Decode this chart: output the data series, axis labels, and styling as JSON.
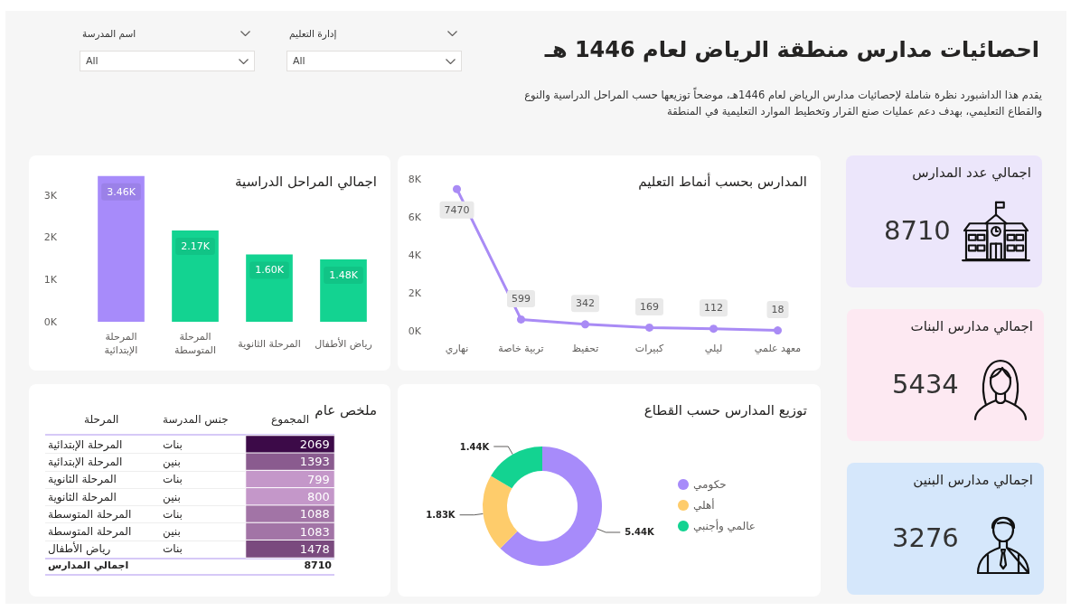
{
  "chart_data": [
    {
      "type": "other",
      "title": "احصائيات مدارس منطقة الرياض لعام 1446 هـ",
      "subtitle": "يقدم هذا الداشبورد نظرة شاملة لإحصائيات مدارس الرياض لعام 1446هـ، موضحاً توزيعها حسب المراحل الدراسية والنوع والقطاع التعليمي، بهدف دعم عمليات صنع القرار وتخطيط الموارد التعليمية في المنطقة",
      "annotations": [
        "إدارة التعليم",
        "All",
        "اسم المدرسة",
        "All"
      ]
    },
    {
      "type": "other",
      "title": "اجمالي عدد المدارس",
      "annotations": [
        "8710"
      ]
    },
    {
      "type": "line",
      "title": "المدارس بحسب أنماط التعليم",
      "categories": [
        "نهاري",
        "تربية خاصة",
        "تحفيظ",
        "كبيرات",
        "ليلي",
        "معهد علمي"
      ],
      "values": [
        7470,
        599,
        342,
        169,
        112,
        18
      ],
      "color": "#a98bf5",
      "ylim": [
        0,
        8000
      ],
      "yticks": [
        {
          "value": 0,
          "label": "0K"
        },
        {
          "value": 2000,
          "label": "2K"
        },
        {
          "value": 4000,
          "label": "4K"
        },
        {
          "value": 6000,
          "label": "6K"
        },
        {
          "value": 8000,
          "label": "8K"
        }
      ],
      "data_labels": true,
      "marker": "circle"
    },
    {
      "type": "bar",
      "title": "اجمالي المراحل الدراسية",
      "categories": [
        "المرحلة الإبتدائية",
        "المرحلة المتوسطة",
        "المرحلة الثانوية",
        "رياض الأطفال"
      ],
      "values": [
        3460,
        2170,
        1600,
        1480
      ],
      "colors": [
        "#a78bfa",
        "#13d391",
        "#13d391",
        "#13d391"
      ],
      "value_labels": [
        "3.46K",
        "2.17K",
        "1.60K",
        "1.48K"
      ],
      "ylim": [
        0,
        3500
      ],
      "yticks": [
        {
          "value": 0,
          "label": "0K"
        },
        {
          "value": 1000,
          "label": "1K"
        },
        {
          "value": 2000,
          "label": "2K"
        },
        {
          "value": 3000,
          "label": "3K"
        }
      ]
    },
    {
      "type": "other",
      "title": "اجمالي مدارس البنات",
      "annotations": [
        "5434"
      ]
    },
    {
      "type": "donut",
      "title": "توزيع المدارس حسب القطاع",
      "categories": [
        "حكومي",
        "أهلي",
        "عالمي وأجنبي"
      ],
      "values": [
        5440,
        1830,
        1440
      ],
      "colors": [
        "#a78bfa",
        "#fecc6b",
        "#13d391"
      ],
      "value_labels": [
        "5.44K",
        "1.83K",
        "1.44K"
      ],
      "legend": "right"
    },
    {
      "type": "heatmap",
      "title": "ملخص عام",
      "categories": [
        "المجموع"
      ],
      "y_categories": [
        "المرحلة الإبتدائية",
        "المرحلة الإبتدائية",
        "المرحلة الثانوية",
        "المرحلة الثانوية",
        "المرحلة المتوسطة",
        "المرحلة المتوسطة",
        "رياض الأطفال"
      ],
      "y2_categories": [
        "بنات",
        "بنين",
        "بنات",
        "بنين",
        "بنات",
        "بنين",
        "بنات"
      ],
      "ylabel": "المرحلة",
      "y2label": "جنس المدرسة",
      "cells": [
        [
          2069
        ],
        [
          1393
        ],
        [
          799
        ],
        [
          800
        ],
        [
          1088
        ],
        [
          1083
        ],
        [
          1478
        ]
      ],
      "colors": [
        "#3c0a48",
        "#8a5b8f",
        "#c497c9",
        "#c497c9",
        "#a274a6",
        "#a274a6",
        "#7a4a7e"
      ],
      "data_labels": true,
      "annotations": [
        "اجمالي المدارس",
        "8710"
      ]
    },
    {
      "type": "other",
      "title": "اجمالي مدارس البنين",
      "annotations": [
        "3276"
      ]
    }
  ]
}
